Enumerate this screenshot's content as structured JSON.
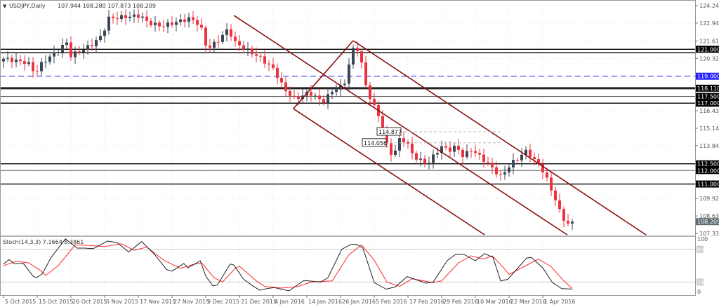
{
  "header": {
    "symbol": "USDJPY,Daily",
    "ohlc": "107.944 108.280 107.873 108.209"
  },
  "colors": {
    "up": "#3b4656",
    "down": "#ee3340",
    "channel": "#8b0f0f",
    "stoch_main": "#222222",
    "stoch_signal": "#ff2a2a",
    "blue_level": "#1f1fff"
  },
  "chart_data": {
    "type": "candlestick",
    "title": "USDJPY,Daily",
    "ylim": [
      107.335,
      124.24
    ],
    "price_ticks": [
      "124.240",
      "122.945",
      "121.615",
      "120.320",
      "116.435",
      "115.140",
      "113.845",
      "109.925",
      "108.630",
      "107.335"
    ],
    "current_price": "108.209",
    "date_labels": [
      "5 Oct 2015",
      "15 Oct 2015",
      "26 Oct 2015",
      "5 Nov 2015",
      "17 Nov 2015",
      "27 Nov 2015",
      "9 Dec 2015",
      "21 Dec 2015",
      "4 Jan 2016",
      "14 Jan 2016",
      "26 Jan 2016",
      "5 Feb 2016",
      "17 Feb 2016",
      "29 Feb 2016",
      "10 Mar 2016",
      "22 Mar 2016",
      "1 Apr 2016"
    ],
    "date_label_days": [
      0,
      8,
      16,
      24,
      32,
      40,
      48,
      56,
      64,
      72,
      80,
      88,
      96,
      104,
      112,
      120,
      128
    ],
    "closes": [
      [
        0,
        120.3
      ],
      [
        5.8,
        120.0
      ],
      [
        7.5,
        119.2
      ],
      [
        9.2,
        120.0
      ],
      [
        12.5,
        120.8
      ],
      [
        15,
        121.5
      ],
      [
        15.8,
        120.5
      ],
      [
        20.8,
        121.3
      ],
      [
        23.3,
        122.0
      ],
      [
        25,
        123.3
      ],
      [
        32.5,
        123.5
      ],
      [
        34.2,
        123.0
      ],
      [
        37.5,
        122.7
      ],
      [
        40.8,
        123.0
      ],
      [
        44.2,
        123.3
      ],
      [
        46.7,
        122.8
      ],
      [
        48.3,
        121.0
      ],
      [
        50.8,
        121.6
      ],
      [
        53.3,
        122.5
      ],
      [
        55,
        121.5
      ],
      [
        57.5,
        121.0
      ],
      [
        60.8,
        120.4
      ],
      [
        64.2,
        119.5
      ],
      [
        66.7,
        118.0
      ],
      [
        69.2,
        117.3
      ],
      [
        72.5,
        117.8
      ],
      [
        75.8,
        117.1
      ],
      [
        78.3,
        118.0
      ],
      [
        80.8,
        118.3
      ],
      [
        82.5,
        120.5
      ],
      [
        83.3,
        121.3
      ],
      [
        84.5,
        120.8
      ],
      [
        85.8,
        118.5
      ],
      [
        87.5,
        117.0
      ],
      [
        89.2,
        116.0
      ],
      [
        90.8,
        114.0
      ],
      [
        92.5,
        113.0
      ],
      [
        94.2,
        114.5
      ],
      [
        95.8,
        114.0
      ],
      [
        97.5,
        113.0
      ],
      [
        99.2,
        112.7
      ],
      [
        100.8,
        112.5
      ],
      [
        102.5,
        113.3
      ],
      [
        104.2,
        113.8
      ],
      [
        105.8,
        113.5
      ],
      [
        107.5,
        113.8
      ],
      [
        109.2,
        113.0
      ],
      [
        110.8,
        113.6
      ],
      [
        113.3,
        113.0
      ],
      [
        115,
        112.5
      ],
      [
        116.7,
        112.0
      ],
      [
        117.8,
        111.5
      ],
      [
        119.2,
        112.0
      ],
      [
        120.8,
        112.6
      ],
      [
        122.5,
        113.0
      ],
      [
        124.2,
        113.5
      ],
      [
        125.8,
        112.8
      ],
      [
        127.5,
        112.3
      ],
      [
        129.2,
        111.2
      ],
      [
        130.8,
        110.0
      ],
      [
        132.5,
        108.6
      ],
      [
        134.2,
        107.944
      ],
      [
        135,
        108.209
      ]
    ],
    "levels": [
      {
        "price": 121.0,
        "label": "121.000",
        "style": "solid"
      },
      {
        "price": 120.745,
        "label": "120.745",
        "style": "solid"
      },
      {
        "price": 119.0,
        "label": "119.000",
        "style": "dashed-blue"
      },
      {
        "price": 118.11,
        "label": "118.110",
        "style": "thick"
      },
      {
        "price": 117.5,
        "label": "117.500",
        "style": "thin"
      },
      {
        "price": 117.0,
        "label": "117.000",
        "style": "solid"
      },
      {
        "price": 112.5,
        "label": "112.500",
        "style": "solid"
      },
      {
        "price": 112.0,
        "label": "112.000",
        "style": "gray"
      },
      {
        "price": 111.0,
        "label": "111.000",
        "style": "solid"
      }
    ],
    "trendlines": [
      [
        [
          83,
          121.64
        ],
        [
          152.5,
          107.23
        ]
      ],
      [
        [
          54.7,
          123.51
        ],
        [
          133.8,
          107.23
        ]
      ],
      [
        [
          68.8,
          116.59
        ],
        [
          114.2,
          107.23
        ]
      ],
      [
        [
          68.8,
          116.59
        ],
        [
          83,
          121.64
        ]
      ]
    ],
    "price_labels": [
      {
        "text": "114.877",
        "day": 89,
        "price": 114.877,
        "end_day": 118
      },
      {
        "text": "114.056",
        "day": 85.5,
        "price": 114.056,
        "end_day": 118
      }
    ],
    "stochastic": {
      "label": "Stoch(14,3,3) 7.1664 8.3861",
      "ylim": [
        0,
        100
      ],
      "levels": [
        "80",
        "20"
      ],
      "axis_labels": [
        "100",
        "0"
      ],
      "main": [
        [
          0,
          53
        ],
        [
          1.3,
          61
        ],
        [
          2.5,
          54
        ],
        [
          4.7,
          54
        ],
        [
          7,
          31
        ],
        [
          7.8,
          28
        ],
        [
          9.2,
          35
        ],
        [
          11.3,
          65
        ],
        [
          14.7,
          99
        ],
        [
          17.5,
          82
        ],
        [
          19.2,
          82
        ],
        [
          21.3,
          81
        ],
        [
          24.7,
          95
        ],
        [
          27,
          92
        ],
        [
          29.7,
          75
        ],
        [
          32.8,
          94
        ],
        [
          35.8,
          71
        ],
        [
          38.7,
          43
        ],
        [
          40,
          40
        ],
        [
          42.8,
          54
        ],
        [
          43.8,
          46
        ],
        [
          46.7,
          59
        ],
        [
          48,
          31
        ],
        [
          49.7,
          13
        ],
        [
          50.8,
          15
        ],
        [
          53.8,
          53
        ],
        [
          54.7,
          51
        ],
        [
          57,
          25
        ],
        [
          59.2,
          13
        ],
        [
          60.8,
          5
        ],
        [
          62.5,
          8
        ],
        [
          64.2,
          10
        ],
        [
          65.8,
          7
        ],
        [
          67.8,
          4
        ],
        [
          71.3,
          23
        ],
        [
          75.3,
          20
        ],
        [
          77,
          28
        ],
        [
          80.3,
          80
        ],
        [
          82.5,
          89
        ],
        [
          83.8,
          89
        ],
        [
          85.3,
          82
        ],
        [
          88,
          19
        ],
        [
          90.8,
          7
        ],
        [
          93,
          11
        ],
        [
          95.8,
          30
        ],
        [
          100.3,
          18
        ],
        [
          102,
          20
        ],
        [
          105.3,
          59
        ],
        [
          107.2,
          70
        ],
        [
          109.2,
          71
        ],
        [
          112,
          59
        ],
        [
          114.2,
          72
        ],
        [
          116.2,
          65
        ],
        [
          118,
          22
        ],
        [
          119.7,
          25
        ],
        [
          124.2,
          64
        ],
        [
          125.3,
          65
        ],
        [
          128,
          46
        ],
        [
          130.3,
          19
        ],
        [
          132.5,
          8
        ],
        [
          135,
          7.1664
        ]
      ],
      "signal": [
        [
          0,
          50
        ],
        [
          3,
          58
        ],
        [
          6,
          55
        ],
        [
          9,
          40
        ],
        [
          10,
          32
        ],
        [
          13,
          50
        ],
        [
          17,
          88
        ],
        [
          20,
          87
        ],
        [
          24,
          85
        ],
        [
          28,
          90
        ],
        [
          31,
          78
        ],
        [
          34,
          84
        ],
        [
          38,
          60
        ],
        [
          42,
          45
        ],
        [
          45,
          52
        ],
        [
          47,
          55
        ],
        [
          50,
          28
        ],
        [
          52,
          20
        ],
        [
          55,
          45
        ],
        [
          56,
          49
        ],
        [
          60,
          22
        ],
        [
          62,
          12
        ],
        [
          66,
          9
        ],
        [
          70,
          12
        ],
        [
          73,
          20
        ],
        [
          78,
          22
        ],
        [
          82,
          70
        ],
        [
          85,
          88
        ],
        [
          88,
          60
        ],
        [
          91,
          20
        ],
        [
          94,
          12
        ],
        [
          97,
          26
        ],
        [
          102,
          19
        ],
        [
          104,
          22
        ],
        [
          108,
          55
        ],
        [
          111,
          68
        ],
        [
          114,
          62
        ],
        [
          116,
          68
        ],
        [
          118,
          52
        ],
        [
          120,
          34
        ],
        [
          124,
          50
        ],
        [
          127,
          62
        ],
        [
          130,
          48
        ],
        [
          133,
          22
        ],
        [
          135,
          8.3861
        ]
      ]
    }
  }
}
